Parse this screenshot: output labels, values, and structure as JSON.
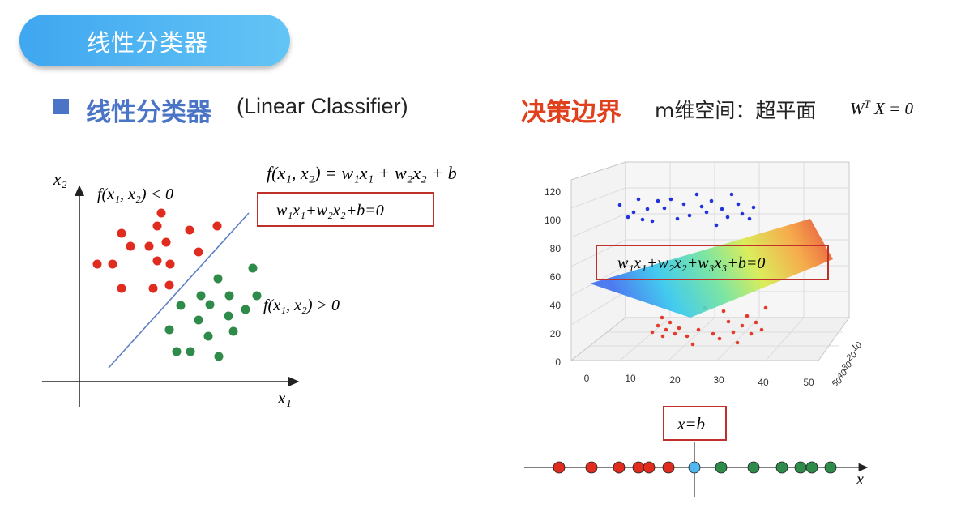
{
  "slide": {
    "title": "线性分类器",
    "heading_cn": "线性分类器",
    "heading_en": "(Linear Classifier)",
    "decision_label": "决策边界",
    "space_text": "m维空间：超平面",
    "hyperplane_formula": {
      "w": "W",
      "sup": "T",
      "rest": "X = 0"
    }
  },
  "left_diagram": {
    "axis_x": "x₁",
    "axis_y": "x₂",
    "f_def": "f(x₁, x₂) = w₁x₁ + w₂x₂ + b",
    "boundary_eq": "w₁x₁+w₂x₂+b=0",
    "region_neg": "f(x₁, x₂) < 0",
    "region_pos": "f(x₁, x₂) > 0",
    "colors": {
      "red": "#e02b1f",
      "green": "#2e8b4a",
      "line": "#5b7fc4",
      "box": "#c0302a"
    }
  },
  "plot3d": {
    "y_ticks": [
      "0",
      "20",
      "40",
      "60",
      "80",
      "100",
      "120"
    ],
    "x_ticks": [
      "0",
      "10",
      "20",
      "30",
      "40",
      "50"
    ],
    "depth_ticks": [
      "50",
      "40",
      "30",
      "20",
      "10"
    ],
    "plane_eq": "w₁x₁+w₂x₂+w₃x₃+b=0"
  },
  "line_1d": {
    "boundary_eq": "x=b",
    "axis": "x",
    "colors": {
      "red": "#e02b1f",
      "green": "#2e8b4a",
      "boundary": "#4fb8f0"
    }
  }
}
